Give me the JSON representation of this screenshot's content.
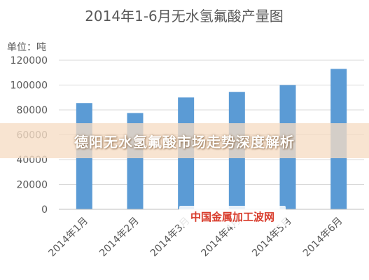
{
  "chart_data": {
    "type": "bar",
    "title": "2014年1-6月无水氢氟酸产量图",
    "unit_label": "单位：吨",
    "categories": [
      "2014年1月",
      "2014年2月",
      "2014年3月",
      "2014年4月",
      "2014年5月",
      "2014年6月"
    ],
    "values": [
      85500,
      77500,
      90000,
      94500,
      100000,
      113000
    ],
    "ylim": [
      0,
      120000
    ],
    "yticks": [
      "0",
      "20000",
      "40000",
      "60000",
      "80000",
      "100000",
      "120000"
    ],
    "grid": true,
    "legend": "none",
    "bar_color": "#5b9bd5"
  },
  "overlay": {
    "banner_text": "德阳无水氢氟酸市场走势深度解析",
    "watermark_text": "中国金属加工波网"
  }
}
